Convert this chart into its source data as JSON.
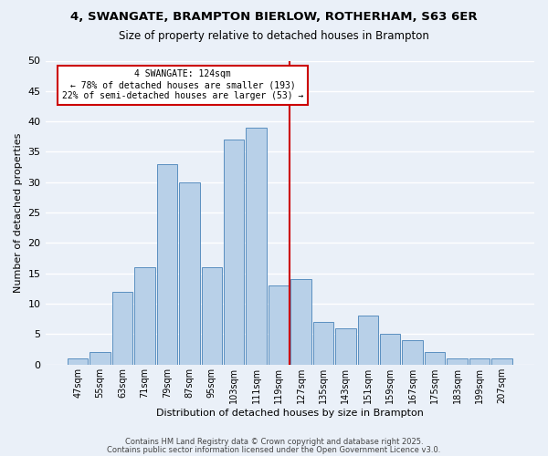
{
  "title1": "4, SWANGATE, BRAMPTON BIERLOW, ROTHERHAM, S63 6ER",
  "title2": "Size of property relative to detached houses in Brampton",
  "xlabel": "Distribution of detached houses by size in Brampton",
  "ylabel": "Number of detached properties",
  "bar_labels": [
    "47sqm",
    "55sqm",
    "63sqm",
    "71sqm",
    "79sqm",
    "87sqm",
    "95sqm",
    "103sqm",
    "111sqm",
    "119sqm",
    "127sqm",
    "135sqm",
    "143sqm",
    "151sqm",
    "159sqm",
    "167sqm",
    "175sqm",
    "183sqm",
    "199sqm",
    "207sqm"
  ],
  "bar_values": [
    1,
    2,
    12,
    16,
    33,
    30,
    16,
    37,
    39,
    13,
    14,
    7,
    6,
    8,
    5,
    4,
    2,
    1,
    1,
    1
  ],
  "bar_color": "#b8d0e8",
  "bar_edge_color": "#5a8fc0",
  "vline_x": 9.5,
  "vline_color": "#cc0000",
  "annotation_title": "4 SWANGATE: 124sqm",
  "annotation_line1": "← 78% of detached houses are smaller (193)",
  "annotation_line2": "22% of semi-detached houses are larger (53) →",
  "annotation_box_color": "#cc0000",
  "background_color": "#eaf0f8",
  "grid_color": "#ffffff",
  "ylim": [
    0,
    50
  ],
  "yticks": [
    0,
    5,
    10,
    15,
    20,
    25,
    30,
    35,
    40,
    45,
    50
  ],
  "footer1": "Contains HM Land Registry data © Crown copyright and database right 2025.",
  "footer2": "Contains public sector information licensed under the Open Government Licence v3.0."
}
